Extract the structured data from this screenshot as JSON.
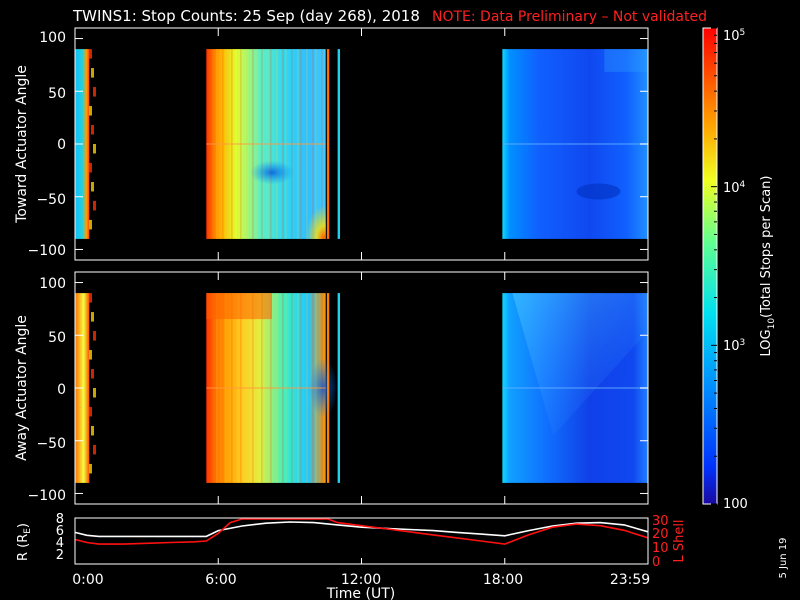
{
  "header": {
    "title": "TWINS1: Stop Counts: 25 Sep (day 268), 2018",
    "note": "NOTE: Data Preliminary – Not validated",
    "note_color": "#ff2020"
  },
  "footer": {
    "date_stamp": "5 Jun 19",
    "xlabel": "Time (UT)"
  },
  "colorbar": {
    "label_log": "LOG",
    "label_sub": "10",
    "label_rest": "(Total Stops per Scan)",
    "ticks": [
      {
        "value": 100,
        "text": "100"
      },
      {
        "value": 1000,
        "text": "10",
        "exp": "3"
      },
      {
        "value": 10000,
        "text": "10",
        "exp": "4"
      },
      {
        "value": 100000,
        "text": "10",
        "exp": "5"
      }
    ],
    "scale": "log",
    "range": [
      100,
      100000
    ]
  },
  "chart_data": [
    {
      "type": "heatmap",
      "panel": "toward",
      "ylabel": "Toward Actuator Angle",
      "xlim": [
        0,
        24
      ],
      "ylim": [
        -110,
        110
      ],
      "yticks": [
        "100",
        "50",
        "0",
        "−50",
        "−100"
      ],
      "data_extent_y": [
        -90,
        90
      ],
      "segments": [
        {
          "start_hr": 0.0,
          "end_hr": 0.6,
          "level": "mixed"
        },
        {
          "start_hr": 5.5,
          "end_hr": 10.5,
          "level": "high-to-mid"
        },
        {
          "start_hr": 10.55,
          "end_hr": 10.65,
          "level": "high"
        },
        {
          "start_hr": 11.0,
          "end_hr": 11.1,
          "level": "mid"
        },
        {
          "start_hr": 17.9,
          "end_hr": 24.0,
          "level": "low"
        }
      ]
    },
    {
      "type": "heatmap",
      "panel": "away",
      "ylabel": "Away Actuator Angle",
      "xlim": [
        0,
        24
      ],
      "ylim": [
        -110,
        110
      ],
      "yticks": [
        "100",
        "50",
        "0",
        "−50",
        "−100"
      ],
      "data_extent_y": [
        -90,
        90
      ],
      "segments": [
        {
          "start_hr": 0.0,
          "end_hr": 0.6,
          "level": "mixed"
        },
        {
          "start_hr": 5.5,
          "end_hr": 10.5,
          "level": "high-to-mid"
        },
        {
          "start_hr": 10.55,
          "end_hr": 10.65,
          "level": "high"
        },
        {
          "start_hr": 11.0,
          "end_hr": 11.1,
          "level": "mid"
        },
        {
          "start_hr": 17.9,
          "end_hr": 24.0,
          "level": "low"
        }
      ]
    },
    {
      "type": "line",
      "panel": "orbit",
      "ylabel_left": "R (R",
      "ylabel_left_sub": "E",
      "ylabel_left_end": ")",
      "ylabel_right": "L Shell",
      "ylim_left": [
        0,
        8
      ],
      "ylim_right": [
        0,
        30
      ],
      "yticks_left": [
        "8",
        "6",
        "4",
        "2"
      ],
      "yticks_right": [
        "30",
        "20",
        "10",
        "0"
      ],
      "xticks": [
        "0:00",
        "6:00",
        "12:00",
        "18:00",
        "23:59"
      ],
      "xlim": [
        0,
        24
      ],
      "series": [
        {
          "color": "#ffffff",
          "axis": "left",
          "x": [
            0,
            0.5,
            1,
            2,
            3,
            4,
            5,
            5.5,
            6,
            7,
            8,
            9,
            10,
            11,
            12,
            13,
            14,
            15,
            16,
            17,
            18,
            19,
            20,
            21,
            22,
            23,
            24
          ],
          "y": [
            5.5,
            5.0,
            4.8,
            4.8,
            4.8,
            4.8,
            4.8,
            4.8,
            5.8,
            6.6,
            7.1,
            7.3,
            7.2,
            6.8,
            6.4,
            6.2,
            6.0,
            5.8,
            5.5,
            5.2,
            4.9,
            5.8,
            6.6,
            7.1,
            7.2,
            6.8,
            5.6
          ]
        },
        {
          "color": "#ff1010",
          "axis": "right",
          "x": [
            0,
            0.5,
            1,
            2,
            3,
            4,
            5,
            5.5,
            6,
            6.5,
            7,
            7.2,
            10.5,
            10.6,
            11,
            12,
            13,
            14,
            15,
            16,
            17,
            18,
            19,
            20,
            21,
            22,
            23,
            24
          ],
          "y": [
            16,
            14,
            13,
            13,
            13.5,
            14,
            14.5,
            15,
            20,
            27,
            31,
            33,
            33,
            30,
            27,
            25,
            23,
            21,
            19,
            17,
            15,
            13,
            19,
            24,
            26,
            25,
            22,
            17
          ]
        }
      ]
    }
  ]
}
